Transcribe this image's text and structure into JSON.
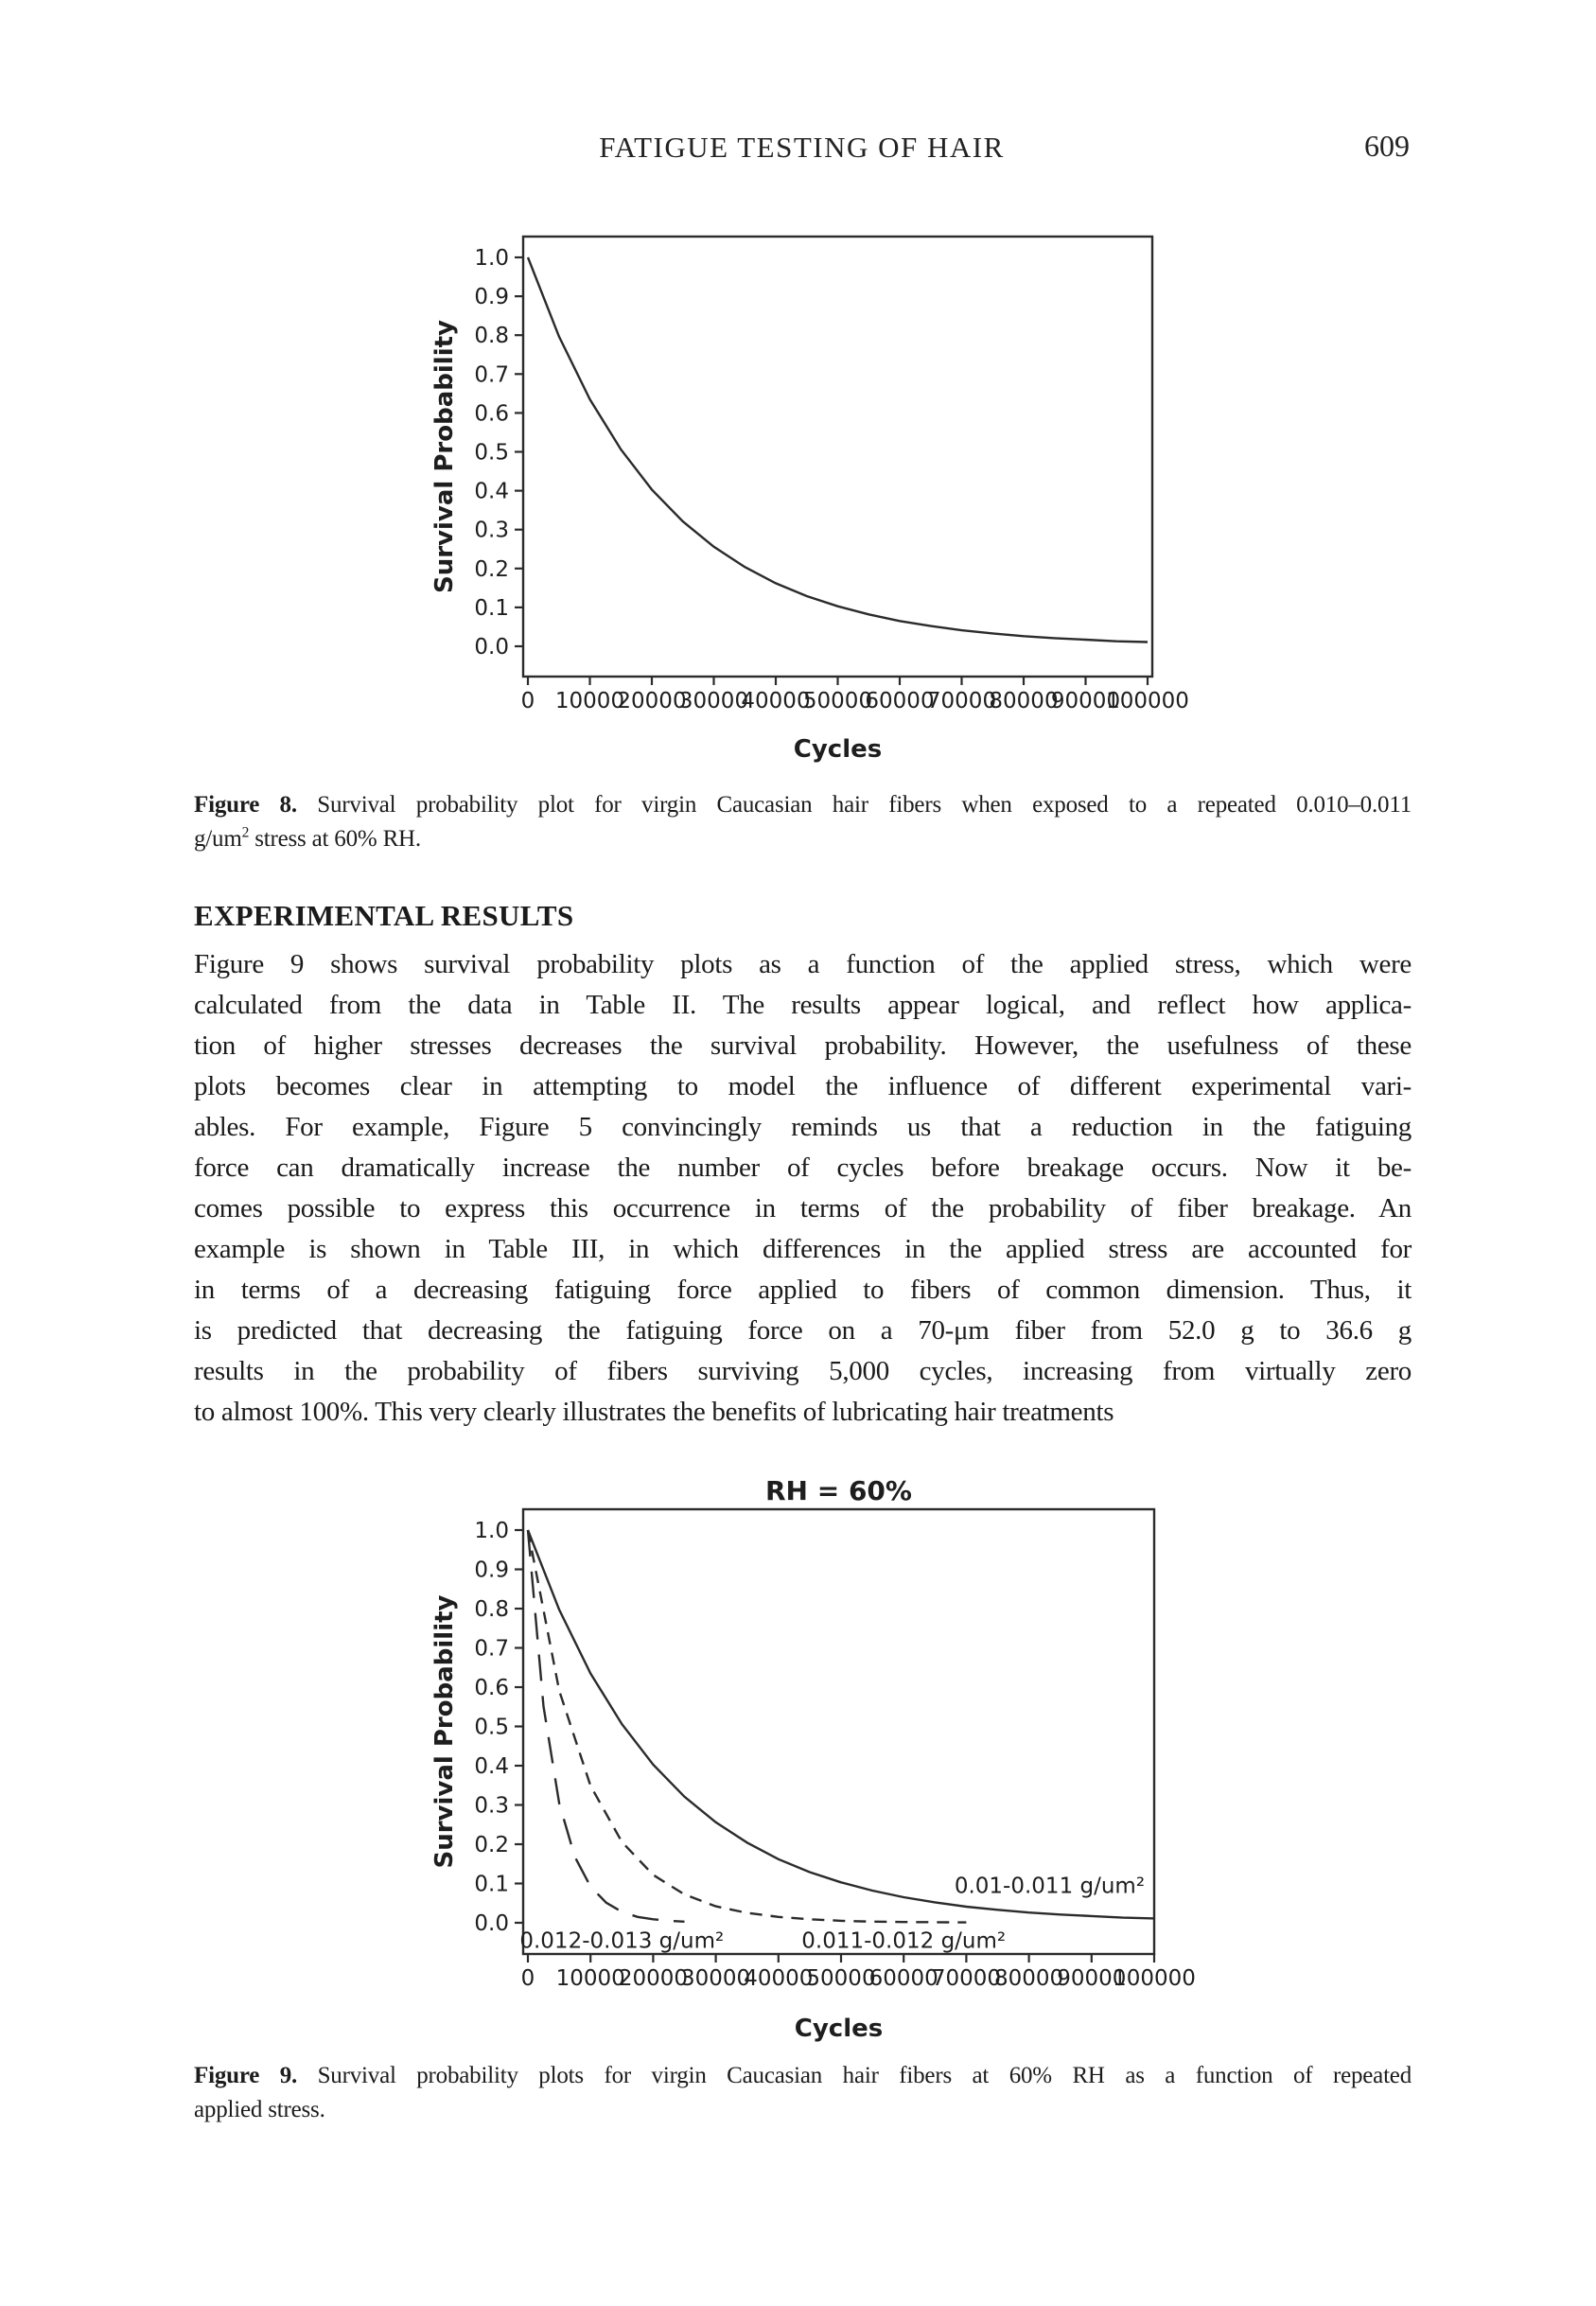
{
  "header": {
    "title": "FATIGUE TESTING OF HAIR",
    "page_number": "609"
  },
  "figure8": {
    "caption": {
      "lines": [
        {
          "label": "Figure 8.",
          "text": "  Survival probability plot for virgin Caucasian hair fibers when exposed to a repeated 0.010–0.011"
        },
        {
          "pre_sup": "g/um",
          "sup": "2",
          "post_sup": " stress at 60% RH."
        }
      ]
    }
  },
  "section": {
    "heading": "EXPERIMENTAL RESULTS"
  },
  "body": {
    "lines": [
      "Figure 9 shows survival probability plots as a function of the applied stress, which were",
      "calculated from the data in Table II. The results appear logical, and reflect how applica-",
      "tion of higher stresses decreases the survival probability. However, the usefulness of these",
      "plots becomes clear in attempting to model the influence of different experimental vari-",
      "ables. For example, Figure 5 convincingly reminds us that a reduction in the fatiguing",
      "force can dramatically increase the number of cycles before breakage occurs. Now it be-",
      "comes possible to express this occurrence in terms of the probability of fiber breakage. An",
      "example is shown in Table III, in which differences in the applied stress are accounted for",
      "in terms of a decreasing fatiguing force applied to fibers of common dimension. Thus, it",
      "is predicted that decreasing the fatiguing force on a 70-μm fiber from 52.0 g to 36.6 g",
      "results in the probability of fibers surviving 5,000 cycles, increasing from virtually zero",
      "to almost 100%. This very clearly illustrates the benefits of lubricating hair treatments"
    ]
  },
  "figure9": {
    "caption": {
      "lines": [
        {
          "label": "Figure 9.",
          "text": "  Survival probability plots for virgin Caucasian hair fibers at 60% RH as a function of repeated"
        },
        {
          "text": "applied stress."
        }
      ]
    }
  },
  "chart_data": [
    {
      "id": "figure8",
      "type": "line",
      "title": "",
      "xlabel": "Cycles",
      "ylabel": "Survival Probability",
      "xlim": [
        0,
        100000
      ],
      "ylim": [
        0.0,
        1.0
      ],
      "grid": false,
      "legend_position": "none",
      "x_ticks": [
        0,
        10000,
        20000,
        30000,
        40000,
        50000,
        60000,
        70000,
        80000,
        90000,
        100000
      ],
      "x_tick_labels": [
        "0",
        "10000",
        "20000",
        "30000",
        "40000",
        "50000",
        "60000",
        "70000",
        "80000",
        "90000",
        "100000"
      ],
      "y_ticks": [
        0.0,
        0.1,
        0.2,
        0.3,
        0.4,
        0.5,
        0.6,
        0.7,
        0.8,
        0.9,
        1.0
      ],
      "y_tick_labels": [
        "0.0",
        "0.1",
        "0.2",
        "0.3",
        "0.4",
        "0.5",
        "0.6",
        "0.7",
        "0.8",
        "0.9",
        "1.0"
      ],
      "series": [
        {
          "name": "0.010–0.011 g/um² at 60% RH",
          "style": "solid",
          "x": [
            0,
            5000,
            10000,
            15000,
            20000,
            25000,
            30000,
            35000,
            40000,
            45000,
            50000,
            55000,
            60000,
            65000,
            70000,
            75000,
            80000,
            85000,
            90000,
            95000,
            100000
          ],
          "y": [
            1.0,
            0.797,
            0.635,
            0.506,
            0.403,
            0.321,
            0.256,
            0.204,
            0.162,
            0.129,
            0.103,
            0.082,
            0.065,
            0.052,
            0.041,
            0.033,
            0.026,
            0.021,
            0.017,
            0.013,
            0.011
          ]
        }
      ]
    },
    {
      "id": "figure9",
      "type": "line",
      "title": "RH = 60%",
      "xlabel": "Cycles",
      "ylabel": "Survival Probability",
      "xlim": [
        0,
        100000
      ],
      "ylim": [
        0.0,
        1.0
      ],
      "grid": false,
      "legend_position": "inline-labels",
      "x_ticks": [
        0,
        10000,
        20000,
        30000,
        40000,
        50000,
        60000,
        70000,
        80000,
        90000,
        100000
      ],
      "x_tick_labels": [
        "0",
        "10000",
        "20000",
        "30000",
        "40000",
        "50000",
        "60000",
        "70000",
        "80000",
        "90000",
        "100000"
      ],
      "y_ticks": [
        0.0,
        0.1,
        0.2,
        0.3,
        0.4,
        0.5,
        0.6,
        0.7,
        0.8,
        0.9,
        1.0
      ],
      "y_tick_labels": [
        "0.0",
        "0.1",
        "0.2",
        "0.3",
        "0.4",
        "0.5",
        "0.6",
        "0.7",
        "0.8",
        "0.9",
        "1.0"
      ],
      "series": [
        {
          "name": "0.01-0.011 g/um²",
          "style": "solid",
          "label": {
            "text": "0.01-0.011 g/um²",
            "x": 98500,
            "y": 0.095,
            "anchor": "end"
          },
          "x": [
            0,
            5000,
            10000,
            15000,
            20000,
            25000,
            30000,
            35000,
            40000,
            45000,
            50000,
            55000,
            60000,
            65000,
            70000,
            75000,
            80000,
            85000,
            90000,
            95000,
            100000
          ],
          "y": [
            1.0,
            0.797,
            0.635,
            0.506,
            0.403,
            0.321,
            0.256,
            0.204,
            0.162,
            0.129,
            0.103,
            0.082,
            0.065,
            0.052,
            0.041,
            0.033,
            0.026,
            0.021,
            0.017,
            0.013,
            0.011
          ]
        },
        {
          "name": "0.011-0.012 g/um²",
          "style": "dashed",
          "label": {
            "text": "0.011-0.012 g/um²",
            "x": 60000,
            "y": -0.045,
            "anchor": "middle"
          },
          "x": [
            0,
            5000,
            10000,
            15000,
            20000,
            25000,
            30000,
            35000,
            40000,
            45000,
            50000,
            55000,
            60000,
            65000,
            70000
          ],
          "y": [
            1.0,
            0.591,
            0.349,
            0.206,
            0.122,
            0.072,
            0.042,
            0.025,
            0.015,
            0.009,
            0.005,
            0.003,
            0.002,
            0.0015,
            0.001
          ]
        },
        {
          "name": "0.012-0.013 g/um²",
          "style": "long-dash",
          "label": {
            "text": "0.012-0.013 g/um²",
            "x": 15000,
            "y": -0.045,
            "anchor": "middle"
          },
          "x": [
            0,
            2500,
            5000,
            7500,
            10000,
            12500,
            15000,
            17500,
            20000,
            22500,
            25000
          ],
          "y": [
            1.0,
            0.551,
            0.304,
            0.168,
            0.092,
            0.051,
            0.028,
            0.015,
            0.009,
            0.005,
            0.003
          ]
        }
      ]
    }
  ]
}
